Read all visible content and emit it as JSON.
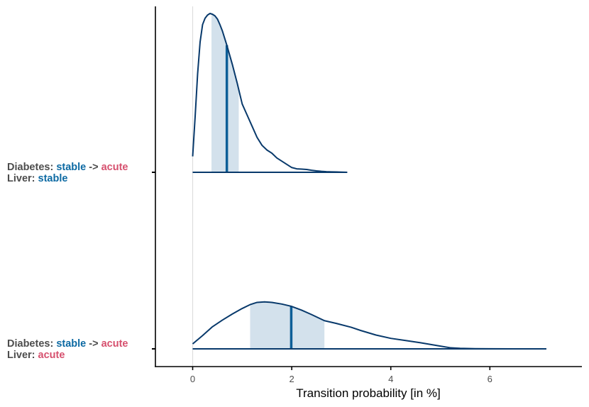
{
  "colors": {
    "density_line": "#08396b",
    "interval_fill": "#d3e1ec",
    "median_line": "#0d5e97",
    "stable": "#0d6aa3",
    "acute": "#d6506e",
    "label_gray": "#4d4d4d",
    "zero_line": "#dddddd",
    "axis": "#000000"
  },
  "chart_data": {
    "type": "ridgeline-density",
    "xlabel": "Transition probability [in %]",
    "ylabel": "",
    "xlim": [
      -0.75,
      7.85
    ],
    "x_ticks": [
      0,
      2,
      4,
      6
    ],
    "x_tick_labels": [
      "0",
      "2",
      "4",
      "6"
    ],
    "grid": false,
    "reference_line_x": 0,
    "rows": [
      {
        "label_line1": [
          {
            "text": "Diabetes: ",
            "role": "gray"
          },
          {
            "text": "stable",
            "role": "stable"
          },
          {
            "text": " -> ",
            "role": "gray"
          },
          {
            "text": "acute",
            "role": "acute"
          }
        ],
        "label_line2": [
          {
            "text": "Liver: ",
            "role": "gray"
          },
          {
            "text": "stable",
            "role": "stable"
          }
        ],
        "interval": [
          0.38,
          0.93
        ],
        "median": 0.69,
        "density": [
          [
            0.0,
            0.1
          ],
          [
            0.05,
            0.35
          ],
          [
            0.1,
            0.62
          ],
          [
            0.15,
            0.82
          ],
          [
            0.2,
            0.93
          ],
          [
            0.25,
            0.97
          ],
          [
            0.3,
            0.99
          ],
          [
            0.35,
            1.0
          ],
          [
            0.4,
            0.995
          ],
          [
            0.45,
            0.985
          ],
          [
            0.5,
            0.965
          ],
          [
            0.55,
            0.93
          ],
          [
            0.6,
            0.89
          ],
          [
            0.69,
            0.8
          ],
          [
            0.8,
            0.68
          ],
          [
            0.9,
            0.56
          ],
          [
            1.0,
            0.43
          ],
          [
            1.1,
            0.36
          ],
          [
            1.2,
            0.29
          ],
          [
            1.3,
            0.22
          ],
          [
            1.4,
            0.17
          ],
          [
            1.5,
            0.14
          ],
          [
            1.6,
            0.12
          ],
          [
            1.7,
            0.09
          ],
          [
            1.8,
            0.07
          ],
          [
            1.9,
            0.05
          ],
          [
            2.0,
            0.03
          ],
          [
            2.1,
            0.022
          ],
          [
            2.2,
            0.02
          ],
          [
            2.3,
            0.018
          ],
          [
            2.4,
            0.013
          ],
          [
            2.5,
            0.009
          ],
          [
            2.6,
            0.006
          ],
          [
            2.7,
            0.004
          ],
          [
            2.8,
            0.003
          ],
          [
            2.9,
            0.002
          ],
          [
            3.0,
            0.001
          ],
          [
            3.12,
            0.0
          ]
        ]
      },
      {
        "label_line1": [
          {
            "text": "Diabetes: ",
            "role": "gray"
          },
          {
            "text": "stable",
            "role": "stable"
          },
          {
            "text": " -> ",
            "role": "gray"
          },
          {
            "text": "acute",
            "role": "acute"
          }
        ],
        "label_line2": [
          {
            "text": "Liver: ",
            "role": "gray"
          },
          {
            "text": "acute",
            "role": "acute"
          }
        ],
        "interval": [
          1.16,
          2.66
        ],
        "median": 1.99,
        "density": [
          [
            0.0,
            0.09
          ],
          [
            0.2,
            0.24
          ],
          [
            0.4,
            0.4
          ],
          [
            0.6,
            0.52
          ],
          [
            0.8,
            0.63
          ],
          [
            1.0,
            0.73
          ],
          [
            1.16,
            0.8
          ],
          [
            1.3,
            0.84
          ],
          [
            1.45,
            0.85
          ],
          [
            1.6,
            0.84
          ],
          [
            1.8,
            0.81
          ],
          [
            1.99,
            0.77
          ],
          [
            2.2,
            0.7
          ],
          [
            2.4,
            0.62
          ],
          [
            2.66,
            0.51
          ],
          [
            2.9,
            0.46
          ],
          [
            3.2,
            0.39
          ],
          [
            3.4,
            0.33
          ],
          [
            3.7,
            0.25
          ],
          [
            4.0,
            0.19
          ],
          [
            4.3,
            0.15
          ],
          [
            4.6,
            0.11
          ],
          [
            4.8,
            0.08
          ],
          [
            5.0,
            0.05
          ],
          [
            5.2,
            0.02
          ],
          [
            5.4,
            0.01
          ],
          [
            5.7,
            0.003
          ],
          [
            6.0,
            0.001
          ],
          [
            6.5,
            0.0
          ],
          [
            7.14,
            0.0
          ]
        ]
      }
    ]
  }
}
